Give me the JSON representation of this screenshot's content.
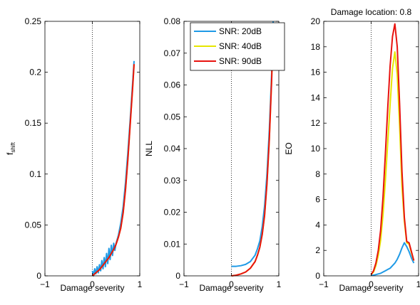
{
  "chart_data": [
    {
      "type": "line",
      "title": "",
      "xlabel": "Damage severity",
      "ylabel": "f",
      "ylabel_sub": "shift",
      "xlim": [
        -1,
        1
      ],
      "ylim": [
        0,
        0.25
      ],
      "xticks": [
        -1,
        0,
        1
      ],
      "xtick_labels": [
        "−1",
        "0",
        "1"
      ],
      "yticks": [
        0,
        0.05,
        0.1,
        0.15,
        0.2,
        0.25
      ],
      "ytick_labels": [
        "0",
        "0.05",
        "0.1",
        "0.15",
        "0.2",
        "0.25"
      ],
      "grid": false,
      "zero_line": true,
      "series": [
        {
          "name": "SNR: 20dB",
          "color": "#1f9ae6",
          "x": [
            0,
            0.025,
            0.05,
            0.075,
            0.1,
            0.125,
            0.15,
            0.175,
            0.2,
            0.225,
            0.25,
            0.275,
            0.3,
            0.325,
            0.35,
            0.375,
            0.4,
            0.425,
            0.45,
            0.475,
            0.5,
            0.55,
            0.6,
            0.65,
            0.7,
            0.75,
            0.8,
            0.85,
            0.88
          ],
          "values": [
            0.005,
            0.0,
            0.007,
            0.002,
            0.009,
            0.003,
            0.011,
            0.005,
            0.015,
            0.007,
            0.018,
            0.009,
            0.022,
            0.012,
            0.027,
            0.016,
            0.03,
            0.02,
            0.032,
            0.025,
            0.032,
            0.04,
            0.052,
            0.068,
            0.092,
            0.122,
            0.155,
            0.19,
            0.211
          ]
        },
        {
          "name": "SNR: 40dB",
          "color": "#e6e600",
          "x": [
            0,
            0.05,
            0.1,
            0.15,
            0.2,
            0.25,
            0.3,
            0.35,
            0.4,
            0.45,
            0.5,
            0.55,
            0.6,
            0.65,
            0.7,
            0.75,
            0.8,
            0.85,
            0.88
          ],
          "values": [
            0.0,
            0.002,
            0.004,
            0.006,
            0.009,
            0.012,
            0.015,
            0.018,
            0.022,
            0.026,
            0.031,
            0.038,
            0.047,
            0.062,
            0.085,
            0.115,
            0.15,
            0.185,
            0.208
          ]
        },
        {
          "name": "SNR: 90dB",
          "color": "#e8130f",
          "x": [
            0,
            0.05,
            0.1,
            0.15,
            0.2,
            0.25,
            0.3,
            0.35,
            0.4,
            0.45,
            0.5,
            0.55,
            0.6,
            0.65,
            0.7,
            0.75,
            0.8,
            0.85,
            0.88
          ],
          "values": [
            0.0,
            0.002,
            0.004,
            0.006,
            0.009,
            0.012,
            0.015,
            0.018,
            0.022,
            0.026,
            0.031,
            0.038,
            0.047,
            0.062,
            0.085,
            0.115,
            0.15,
            0.185,
            0.208
          ]
        }
      ]
    },
    {
      "type": "line",
      "title": "",
      "xlabel": "Damage severity",
      "ylabel": "NLL",
      "xlim": [
        -1,
        1
      ],
      "ylim": [
        0,
        0.08
      ],
      "xticks": [
        -1,
        0,
        1
      ],
      "xtick_labels": [
        "−1",
        "0",
        "1"
      ],
      "yticks": [
        0,
        0.01,
        0.02,
        0.03,
        0.04,
        0.05,
        0.06,
        0.07,
        0.08
      ],
      "ytick_labels": [
        "0",
        "0.01",
        "0.02",
        "0.03",
        "0.04",
        "0.05",
        "0.06",
        "0.07",
        "0.08"
      ],
      "grid": false,
      "zero_line": true,
      "legend": "top-right",
      "series": [
        {
          "name": "SNR: 20dB",
          "color": "#1f9ae6",
          "x": [
            0,
            0.1,
            0.2,
            0.3,
            0.4,
            0.5,
            0.55,
            0.6,
            0.65,
            0.7,
            0.75,
            0.8,
            0.85,
            0.88
          ],
          "values": [
            0.003,
            0.003,
            0.0032,
            0.0036,
            0.0045,
            0.0065,
            0.0085,
            0.011,
            0.0155,
            0.022,
            0.032,
            0.046,
            0.064,
            0.08
          ]
        },
        {
          "name": "SNR: 40dB",
          "color": "#e6e600",
          "x": [
            0,
            0.1,
            0.2,
            0.3,
            0.4,
            0.5,
            0.55,
            0.6,
            0.65,
            0.7,
            0.75,
            0.8,
            0.85,
            0.88
          ],
          "values": [
            0.0,
            0.0002,
            0.0006,
            0.0012,
            0.0024,
            0.0045,
            0.0065,
            0.009,
            0.013,
            0.019,
            0.029,
            0.043,
            0.062,
            0.078
          ]
        },
        {
          "name": "SNR: 90dB",
          "color": "#e8130f",
          "x": [
            0,
            0.1,
            0.2,
            0.3,
            0.4,
            0.5,
            0.55,
            0.6,
            0.65,
            0.7,
            0.75,
            0.8,
            0.85,
            0.88
          ],
          "values": [
            0.0,
            0.0002,
            0.0006,
            0.0012,
            0.0024,
            0.0045,
            0.0065,
            0.009,
            0.013,
            0.019,
            0.029,
            0.043,
            0.062,
            0.078
          ]
        }
      ]
    },
    {
      "type": "line",
      "title": "Damage location: 0.8",
      "xlabel": "Damage severity",
      "ylabel": "EO",
      "xlim": [
        -1,
        1
      ],
      "ylim": [
        0,
        20
      ],
      "xticks": [
        -1,
        0,
        1
      ],
      "xtick_labels": [
        "−1",
        "0",
        "1"
      ],
      "yticks": [
        0,
        2,
        4,
        6,
        8,
        10,
        12,
        14,
        16,
        18,
        20
      ],
      "ytick_labels": [
        "0",
        "2",
        "4",
        "6",
        "8",
        "10",
        "12",
        "14",
        "16",
        "18",
        "20"
      ],
      "grid": false,
      "zero_line": true,
      "series": [
        {
          "name": "SNR: 20dB",
          "color": "#1f9ae6",
          "x": [
            0,
            0.05,
            0.1,
            0.15,
            0.2,
            0.25,
            0.3,
            0.35,
            0.4,
            0.45,
            0.5,
            0.55,
            0.6,
            0.65,
            0.7,
            0.75,
            0.8,
            0.85,
            0.9
          ],
          "values": [
            0.05,
            0.05,
            0.1,
            0.15,
            0.2,
            0.3,
            0.4,
            0.5,
            0.6,
            0.8,
            1.0,
            1.3,
            1.7,
            2.2,
            2.6,
            2.3,
            1.9,
            1.4,
            1.0
          ]
        },
        {
          "name": "SNR: 40dB",
          "color": "#e6e600",
          "x": [
            0,
            0.05,
            0.1,
            0.15,
            0.2,
            0.25,
            0.3,
            0.35,
            0.4,
            0.45,
            0.5,
            0.55,
            0.6,
            0.65,
            0.7,
            0.75,
            0.8,
            0.85,
            0.9
          ],
          "values": [
            0.1,
            0.3,
            0.8,
            1.6,
            2.8,
            4.8,
            7.5,
            10.5,
            13.5,
            16.3,
            17.6,
            15.8,
            11.8,
            7.0,
            4.3,
            2.6,
            2.5,
            1.8,
            1.2
          ]
        },
        {
          "name": "SNR: 90dB",
          "color": "#e8130f",
          "x": [
            0,
            0.05,
            0.1,
            0.15,
            0.2,
            0.25,
            0.3,
            0.35,
            0.4,
            0.45,
            0.5,
            0.55,
            0.6,
            0.65,
            0.7,
            0.75,
            0.8,
            0.85,
            0.9
          ],
          "values": [
            0.1,
            0.4,
            1.0,
            2.0,
            3.6,
            6.2,
            9.6,
            13.2,
            16.5,
            18.8,
            19.8,
            18.0,
            13.5,
            8.2,
            4.6,
            2.7,
            2.6,
            1.9,
            1.2
          ]
        }
      ]
    }
  ]
}
